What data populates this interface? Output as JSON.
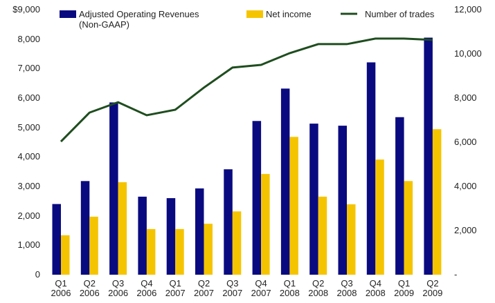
{
  "chart_data": {
    "type": "bar_line",
    "categories": [
      "Q1\n2006",
      "Q2\n2006",
      "Q3\n2006",
      "Q4\n2006",
      "Q1\n2007",
      "Q2\n2007",
      "Q3\n2007",
      "Q4\n2007",
      "Q1\n2008",
      "Q2\n2008",
      "Q3\n2008",
      "Q4\n2008",
      "Q1\n2009",
      "Q2\n2009"
    ],
    "series": [
      {
        "name": "Adjusted Operating Revenues\n(Non-GAAP)",
        "type": "bar",
        "color": "#0a0a80",
        "values": [
          2400,
          3180,
          5850,
          2650,
          2600,
          2930,
          3580,
          5220,
          6320,
          5130,
          5060,
          7210,
          5350,
          8050
        ]
      },
      {
        "name": "Net income",
        "type": "bar",
        "color": "#f5c400",
        "values": [
          1340,
          1970,
          3140,
          1550,
          1550,
          1730,
          2150,
          3420,
          4680,
          2650,
          2390,
          3910,
          3180,
          4940
        ]
      },
      {
        "name": "Number of trades",
        "type": "line",
        "axis": "y2",
        "color": "#1f4d1f",
        "values": [
          6030,
          7340,
          7810,
          7220,
          7470,
          8470,
          9380,
          9500,
          10030,
          10440,
          10440,
          10690,
          10690,
          10630
        ]
      }
    ],
    "ylim": [
      0,
      9000
    ],
    "yticks": [
      0,
      {
        "value": 1000,
        "label": "1,000"
      },
      {
        "value": 2000,
        "label": "2,000"
      },
      {
        "value": 3000,
        "label": "3,000"
      },
      {
        "value": 4000,
        "label": "4,000"
      },
      {
        "value": 5000,
        "label": "5,000"
      },
      {
        "value": 6000,
        "label": "6,000"
      },
      {
        "value": 7000,
        "label": "7,000"
      },
      {
        "value": 8000,
        "label": "8,000"
      },
      {
        "value": 9000,
        "label": "$9,000"
      }
    ],
    "y2lim": [
      0,
      12000
    ],
    "y2ticks": [
      {
        "value": 0,
        "label": "-"
      },
      {
        "value": 2000,
        "label": "2,000"
      },
      {
        "value": 4000,
        "label": "4,000"
      },
      {
        "value": 6000,
        "label": "6,000"
      },
      {
        "value": 8000,
        "label": "8,000"
      },
      {
        "value": 10000,
        "label": "10,000"
      },
      {
        "value": 12000,
        "label": "12,000"
      }
    ],
    "legend": "top",
    "grid": false
  }
}
